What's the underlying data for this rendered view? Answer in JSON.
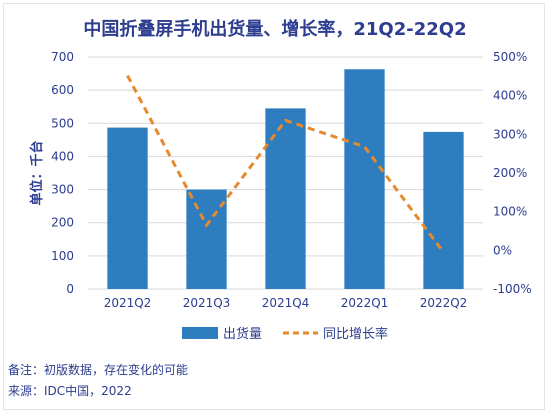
{
  "title": "中国折叠屏手机出货量、增长率，21Q2-22Q2",
  "chart_data": {
    "type": "bar",
    "categories": [
      "2021Q2",
      "2021Q3",
      "2021Q4",
      "2022Q1",
      "2022Q2"
    ],
    "series": [
      {
        "name": "出货量",
        "type": "bar",
        "axis": "left",
        "values": [
          487,
          300,
          545,
          663,
          474
        ],
        "color": "#2e7ebf"
      },
      {
        "name": "同比增长率",
        "type": "line",
        "axis": "right",
        "values": [
          452,
          65,
          336,
          268,
          -5
        ],
        "unit": "%",
        "color": "#e68a2e"
      }
    ],
    "ylabel": "单位：千台",
    "ylim": [
      0,
      700
    ],
    "yticks": [
      "0",
      "100",
      "200",
      "300",
      "400",
      "500",
      "600",
      "700"
    ],
    "y2lim": [
      -100,
      500
    ],
    "y2ticks": [
      "-100%",
      "0%",
      "100%",
      "200%",
      "300%",
      "400%",
      "500%"
    ],
    "grid": true,
    "legend": "bottom"
  },
  "notes": {
    "remark": "备注：初版数据，存在变化的可能",
    "source": "来源：IDC中国，2022"
  }
}
